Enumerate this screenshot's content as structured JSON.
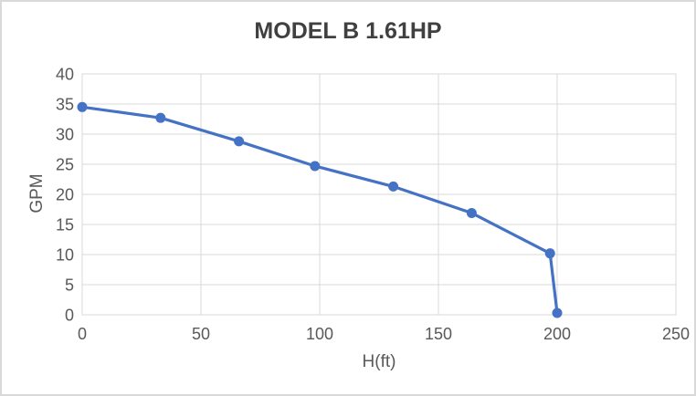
{
  "chart_data": {
    "type": "line",
    "title": "MODEL B 1.61HP",
    "xlabel": "H(ft)",
    "ylabel": "GPM",
    "x": [
      0,
      33,
      66,
      98,
      131,
      164,
      197,
      200
    ],
    "y": [
      34.5,
      32.7,
      28.8,
      24.7,
      21.3,
      16.9,
      10.2,
      0.3
    ],
    "xlim": [
      0,
      250
    ],
    "ylim": [
      0,
      40
    ],
    "x_ticks": [
      0,
      50,
      100,
      150,
      200,
      250
    ],
    "y_ticks": [
      0,
      5,
      10,
      15,
      20,
      25,
      30,
      35,
      40
    ],
    "grid": true,
    "legend_position": "none",
    "marker": "circle",
    "colors": {
      "line": "#4472C4",
      "marker": "#4472C4",
      "gridline": "#D9D9D9",
      "plot_border": "#D9D9D9",
      "tick_label": "#595959",
      "axis_title": "#595959",
      "title": "#404040",
      "background": "#FFFFFF",
      "frame_border": "#D9D9D9"
    }
  }
}
